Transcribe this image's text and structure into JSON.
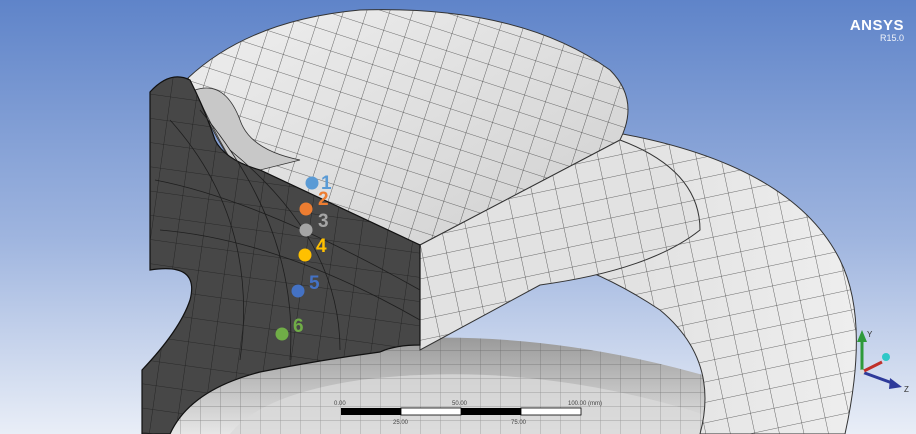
{
  "app": {
    "brand": "ANSYS",
    "version": "R15.0"
  },
  "colors": {
    "background_top": "#5f84c9",
    "background_bottom": "#e9eef7",
    "mesh_face": "#dcdcdc",
    "mesh_line": "#333333",
    "cross_section": "#474747"
  },
  "probe_points": [
    {
      "label": "1",
      "color": "#5b9bd5"
    },
    {
      "label": "2",
      "color": "#ed7d31"
    },
    {
      "label": "3",
      "color": "#a5a5a5"
    },
    {
      "label": "4",
      "color": "#ffc000"
    },
    {
      "label": "5",
      "color": "#4472c4"
    },
    {
      "label": "6",
      "color": "#70ad47"
    }
  ],
  "scale_bar": {
    "ticks_top": [
      "0.00",
      "50.00",
      "100.00 (mm)"
    ],
    "ticks_bottom": [
      "25.00",
      "75.00"
    ]
  },
  "triad": {
    "icon": "coordinate-triad-icon",
    "labels": [
      "Y",
      "Z"
    ]
  }
}
